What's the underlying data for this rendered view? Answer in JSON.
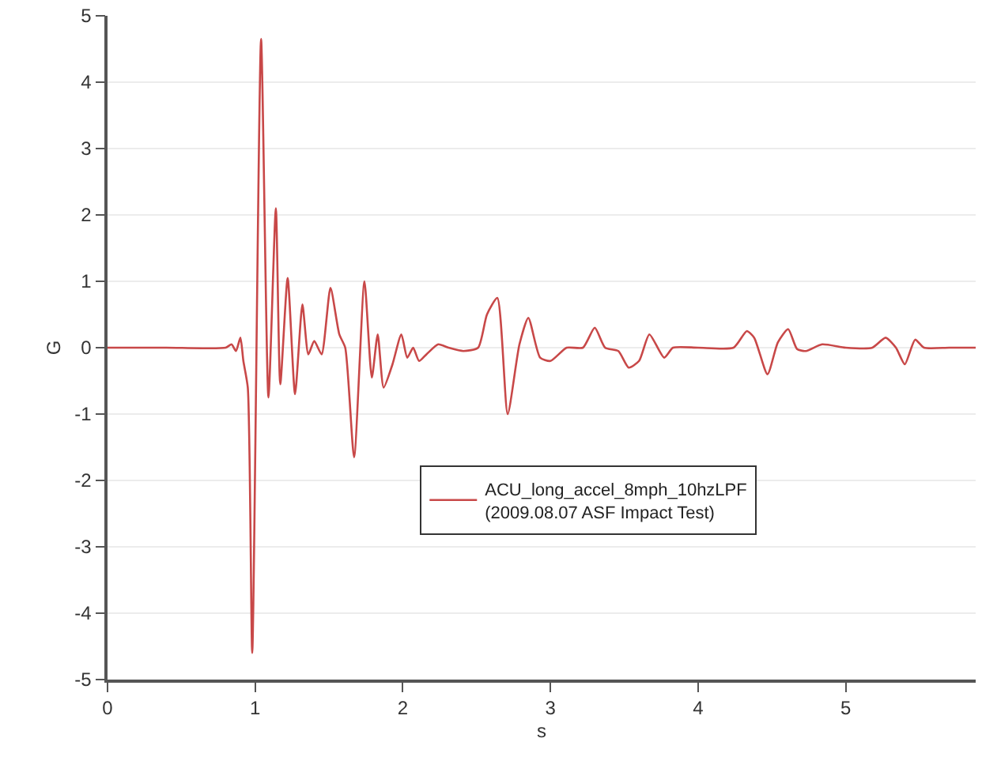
{
  "chart_data": {
    "type": "line",
    "xlabel": "s",
    "ylabel": "G",
    "xlim": [
      0,
      5.88
    ],
    "xticks": [
      0,
      1,
      2,
      3,
      4,
      5
    ],
    "ylim": [
      -5,
      5
    ],
    "yticks": [
      -5,
      -4,
      -3,
      -2,
      -1,
      0,
      1,
      2,
      3,
      4,
      5
    ],
    "grid": "y",
    "legend": "right",
    "line_style": "solid",
    "marker": "none",
    "series": [
      {
        "name": "ACU_long_accel_8mph_10hzLPF\n(2009.08.07 ASF Impact Test)",
        "color": "#c84848",
        "x": [
          0,
          0.4,
          0.8,
          0.84,
          0.87,
          0.9,
          0.92,
          0.95,
          0.98,
          1.04,
          1.09,
          1.14,
          1.17,
          1.22,
          1.27,
          1.32,
          1.36,
          1.4,
          1.45,
          1.51,
          1.57,
          1.61,
          1.67,
          1.74,
          1.79,
          1.83,
          1.87,
          1.93,
          1.99,
          2.03,
          2.07,
          2.11,
          2.16,
          2.24,
          2.31,
          2.41,
          2.51,
          2.57,
          2.64,
          2.71,
          2.79,
          2.85,
          2.93,
          3.0,
          3.11,
          3.22,
          3.3,
          3.37,
          3.46,
          3.53,
          3.6,
          3.67,
          3.77,
          3.83,
          4.0,
          4.24,
          4.33,
          4.38,
          4.47,
          4.54,
          4.61,
          4.67,
          4.73,
          4.84,
          5.0,
          5.18,
          5.27,
          5.34,
          5.4,
          5.47,
          5.53,
          5.7,
          5.88
        ],
        "values": [
          0,
          0,
          0,
          0.05,
          -0.05,
          0.15,
          -0.2,
          -0.6,
          -4.6,
          4.65,
          -0.75,
          2.1,
          -0.55,
          1.05,
          -0.7,
          0.65,
          -0.1,
          0.1,
          -0.1,
          0.9,
          0.2,
          0,
          -1.65,
          1.0,
          -0.45,
          0.2,
          -0.6,
          -0.25,
          0.2,
          -0.15,
          0,
          -0.2,
          -0.1,
          0.05,
          0,
          -0.05,
          0,
          0.5,
          0.75,
          -1.0,
          0.05,
          0.45,
          -0.15,
          -0.2,
          0,
          0,
          0.3,
          0,
          -0.05,
          -0.3,
          -0.2,
          0.2,
          -0.15,
          0,
          0,
          0,
          0.25,
          0.15,
          -0.4,
          0.08,
          0.28,
          -0.02,
          -0.05,
          0.05,
          0,
          0,
          0.15,
          0,
          -0.25,
          0.12,
          0,
          0,
          0
        ]
      }
    ]
  }
}
